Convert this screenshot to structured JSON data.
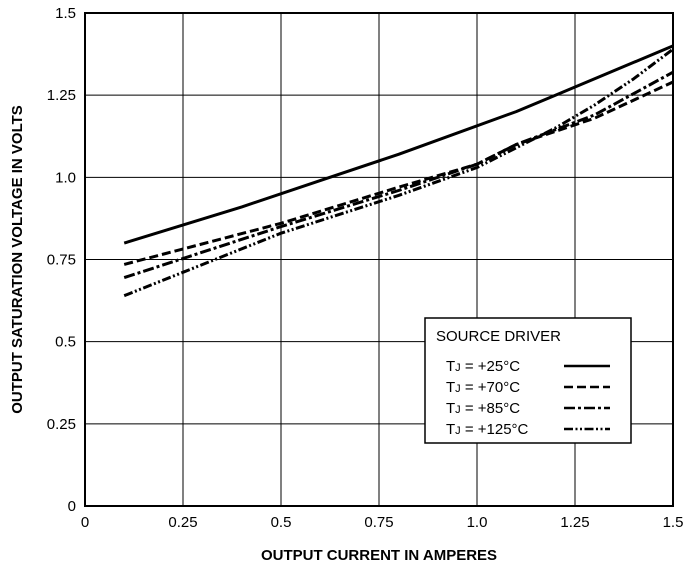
{
  "chart_data": {
    "type": "line",
    "xlabel": "OUTPUT CURRENT IN AMPERES",
    "ylabel": "OUTPUT SATURATION VOLTAGE IN VOLTS",
    "xlim": [
      0,
      1.5
    ],
    "ylim": [
      0,
      1.5
    ],
    "x_ticks": [
      "0",
      "0.25",
      "0.5",
      "0.75",
      "1.0",
      "1.25",
      "1.5"
    ],
    "y_ticks": [
      "0",
      "0.25",
      "0.5",
      "0.75",
      "1.0",
      "1.25",
      "1.5"
    ],
    "grid": true,
    "legend_position": "lower-right",
    "legend_title": "SOURCE DRIVER",
    "series": [
      {
        "name": "TJ = +25°C",
        "label_prefix": "T",
        "label_sub": "J",
        "label_suffix": " = +25°C",
        "style": "solid",
        "x": [
          0.1,
          0.4,
          0.6,
          0.8,
          1.1,
          1.2,
          1.5
        ],
        "y": [
          0.8,
          0.91,
          0.99,
          1.07,
          1.2,
          1.25,
          1.4
        ]
      },
      {
        "name": "TJ = +70°C",
        "label_prefix": "T",
        "label_sub": "J",
        "label_suffix": " = +70°C",
        "style": "dashed",
        "x": [
          0.1,
          0.5,
          0.8,
          1.0,
          1.1,
          1.3,
          1.5
        ],
        "y": [
          0.735,
          0.86,
          0.97,
          1.04,
          1.1,
          1.18,
          1.29
        ]
      },
      {
        "name": "TJ = +85°C",
        "label_prefix": "T",
        "label_sub": "J",
        "label_suffix": " = +85°C",
        "style": "dash-dot",
        "x": [
          0.1,
          0.5,
          0.8,
          1.0,
          1.1,
          1.3,
          1.5
        ],
        "y": [
          0.695,
          0.85,
          0.96,
          1.04,
          1.1,
          1.19,
          1.32
        ]
      },
      {
        "name": "TJ = +125°C",
        "label_prefix": "T",
        "label_sub": "J",
        "label_suffix": " = +125°C",
        "style": "dash-dot-dot",
        "x": [
          0.1,
          0.5,
          0.8,
          1.0,
          1.1,
          1.2,
          1.3,
          1.4,
          1.5
        ],
        "y": [
          0.64,
          0.83,
          0.945,
          1.03,
          1.09,
          1.15,
          1.22,
          1.3,
          1.39
        ]
      }
    ]
  }
}
